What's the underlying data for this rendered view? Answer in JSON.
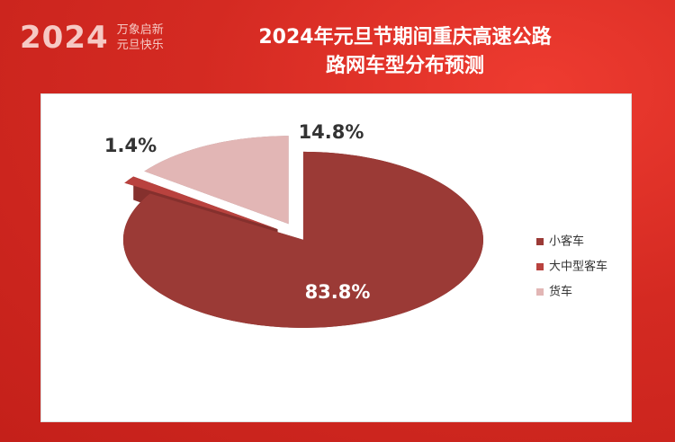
{
  "banner": {
    "year": "2024",
    "line1": "万象启新",
    "line2": "元旦快乐"
  },
  "chart_data": {
    "type": "pie",
    "title": "2024年元旦节期间重庆高速公路\n路网车型分布预测",
    "categories": [
      "小客车",
      "大中型客车",
      "货车"
    ],
    "values": [
      83.8,
      1.4,
      14.8
    ],
    "value_labels": [
      "83.8%",
      "1.4%",
      "14.8%"
    ],
    "colors": [
      "#9b3a36",
      "#b9423e",
      "#e2b6b5"
    ],
    "legend": "right"
  }
}
